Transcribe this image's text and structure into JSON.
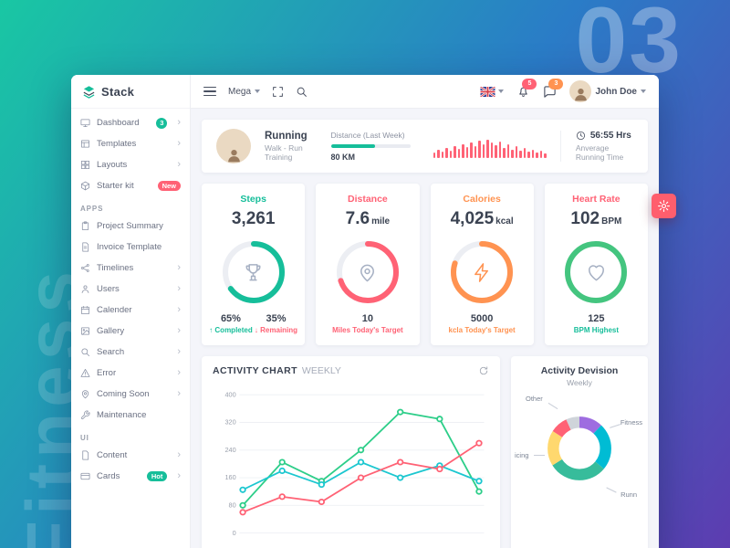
{
  "background": {
    "big_number": "03",
    "side_label": "Fitness"
  },
  "brand": {
    "name": "Stack"
  },
  "navbar": {
    "menu_label": "Mega",
    "bell_badge": "5",
    "chat_badge": "3",
    "user_name": "John Doe"
  },
  "sidebar": {
    "sections": {
      "apps": "APPS",
      "ui": "UI"
    },
    "items": [
      {
        "label": "Dashboard",
        "badge": "3"
      },
      {
        "label": "Templates"
      },
      {
        "label": "Layouts"
      },
      {
        "label": "Starter kit",
        "badge": "New"
      },
      {
        "label": "Project Summary"
      },
      {
        "label": "Invoice Template"
      },
      {
        "label": "Timelines"
      },
      {
        "label": "Users"
      },
      {
        "label": "Calender"
      },
      {
        "label": "Gallery"
      },
      {
        "label": "Search"
      },
      {
        "label": "Error"
      },
      {
        "label": "Coming Soon"
      },
      {
        "label": "Maintenance"
      },
      {
        "label": "Content"
      },
      {
        "label": "Cards",
        "badge": "Hot"
      }
    ]
  },
  "summary": {
    "title": "Running",
    "subtitle": "Walk - Run Training",
    "distance_label": "Distance (Last Week)",
    "distance_percent": 55,
    "distance_value": "80 KM",
    "time_value": "56:55 Hrs",
    "time_label": "Anverage Running Time"
  },
  "stats": {
    "steps": {
      "title": "Steps",
      "title_color": "#16be9a",
      "value": "3,261",
      "unit": "",
      "percent": 65,
      "color": "#16be9a",
      "left_value": "65%",
      "left_label": "Completed",
      "right_value": "35%",
      "right_label": "Remaining",
      "remaining_color": "#ff6275"
    },
    "distance": {
      "title": "Distance",
      "title_color": "#ff6275",
      "value": "7.6",
      "unit": "mile",
      "percent": 70,
      "color": "#ff6275",
      "foot_value": "10",
      "foot_label": "Miles Today's Target",
      "foot_color": "#ff6275"
    },
    "calories": {
      "title": "Calories",
      "title_color": "#ff9351",
      "value": "4,025",
      "unit": "kcal",
      "percent": 80,
      "color": "#ff9351",
      "foot_value": "5000",
      "foot_label": "kcla Today's Target",
      "foot_color": "#ff9351"
    },
    "heart": {
      "title": "Heart Rate",
      "title_color": "#ff6275",
      "value": "102",
      "unit": "BPM",
      "percent": 100,
      "color": "#44c57f",
      "foot_value": "125",
      "foot_label": "BPM Highest",
      "foot_color": "#16be9a"
    }
  },
  "chart_data": [
    {
      "id": "distance_sparkline",
      "type": "bar",
      "color": "#ff6275",
      "values": [
        6,
        9,
        7,
        11,
        8,
        13,
        10,
        15,
        12,
        17,
        13,
        19,
        15,
        20,
        17,
        14,
        18,
        11,
        15,
        9,
        13,
        8,
        11,
        7,
        9,
        6,
        8,
        5
      ]
    },
    {
      "id": "activity_chart",
      "type": "line",
      "title": "ACTIVITY CHART",
      "subtitle": "WEEKLY",
      "ylim": [
        0,
        400
      ],
      "yticks": [
        400,
        320,
        240,
        160,
        80,
        0
      ],
      "x": [
        1,
        2,
        3,
        4,
        5,
        6,
        7
      ],
      "series": [
        {
          "name": "green",
          "color": "#2dce89",
          "values": [
            80,
            205,
            150,
            240,
            350,
            330,
            120
          ]
        },
        {
          "name": "teal",
          "color": "#1cc7d0",
          "values": [
            125,
            180,
            140,
            205,
            160,
            195,
            150
          ]
        },
        {
          "name": "red",
          "color": "#ff6275",
          "values": [
            60,
            105,
            90,
            160,
            205,
            185,
            260
          ]
        }
      ]
    },
    {
      "id": "activity_division",
      "type": "pie",
      "title": "Activity Devision",
      "subtitle": "Weekly",
      "segments": [
        {
          "label": "Other",
          "value": 12,
          "color": "#9e6de0"
        },
        {
          "label": "Fitness",
          "value": 24,
          "color": "#00bcd4"
        },
        {
          "label": "Runn",
          "value": 30,
          "color": "#37bc9b"
        },
        {
          "label": "icing",
          "value": 18,
          "color": "#ffd86e"
        },
        {
          "label": "",
          "value": 9,
          "color": "#ff6275"
        },
        {
          "label": "",
          "value": 7,
          "color": "#cfd4da"
        }
      ]
    }
  ]
}
